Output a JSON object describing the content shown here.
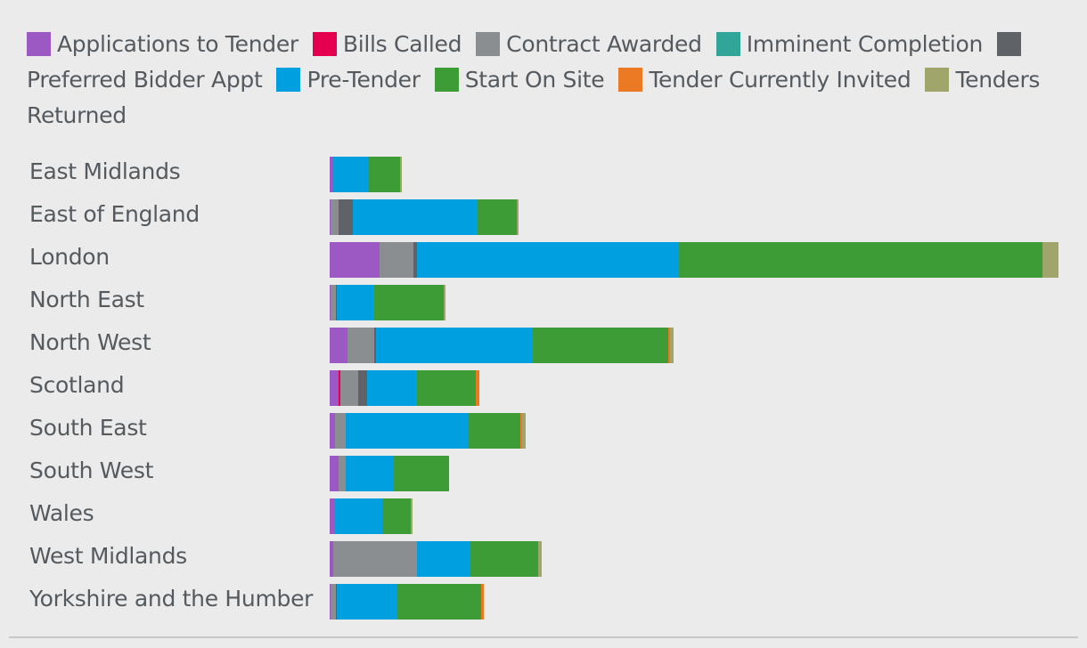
{
  "chart_data": {
    "type": "bar",
    "orientation": "horizontal",
    "stacked": true,
    "title": "",
    "xlabel": "",
    "ylabel": "",
    "legend_position": "top",
    "categories": [
      "East Midlands",
      "East of England",
      "London",
      "North East",
      "North West",
      "Scotland",
      "South East",
      "South West",
      "Wales",
      "West Midlands",
      "Yorkshire and the Humber"
    ],
    "xlim": [
      0,
      818
    ],
    "series": [
      {
        "name": "Applications to Tender",
        "color": "#9c59c4",
        "values": [
          3,
          1,
          56,
          1,
          20,
          10,
          6,
          10,
          5,
          4,
          1
        ]
      },
      {
        "name": "Bills Called",
        "color": "#e4004e",
        "values": [
          0,
          0,
          0,
          0,
          0,
          2,
          0,
          0,
          0,
          0,
          0
        ]
      },
      {
        "name": "Contract Awarded",
        "color": "#8b8e91",
        "values": [
          0,
          9,
          38,
          6,
          30,
          20,
          12,
          8,
          0,
          94,
          6
        ]
      },
      {
        "name": "Imminent Completion",
        "color": "#31a597",
        "values": [
          0,
          0,
          0,
          0,
          0,
          0,
          0,
          0,
          0,
          0,
          0
        ]
      },
      {
        "name": "Preferred Bidder Appt",
        "color": "#5f6368",
        "values": [
          0,
          16,
          4,
          1,
          2,
          10,
          0,
          0,
          0,
          0,
          1
        ]
      },
      {
        "name": "Pre-Tender",
        "color": "#009fdf",
        "values": [
          40,
          140,
          294,
          42,
          176,
          56,
          138,
          54,
          54,
          60,
          68
        ]
      },
      {
        "name": "Start On Site",
        "color": "#3e9c36",
        "values": [
          36,
          44,
          408,
          78,
          152,
          66,
          58,
          62,
          32,
          76,
          94
        ]
      },
      {
        "name": "Tender Currently Invited",
        "color": "#ec7a24",
        "values": [
          0,
          0,
          0,
          0,
          2,
          4,
          2,
          0,
          0,
          0,
          3
        ]
      },
      {
        "name": "Tenders Returned",
        "color": "#a0a56c",
        "values": [
          2,
          2,
          18,
          2,
          4,
          0,
          4,
          0,
          2,
          4,
          0
        ]
      }
    ]
  }
}
